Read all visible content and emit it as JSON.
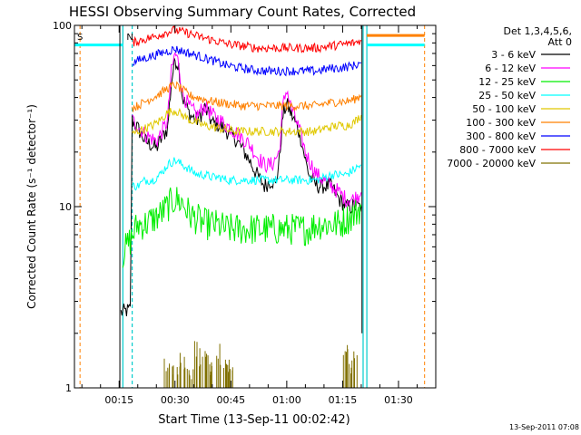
{
  "chart_data": {
    "type": "line",
    "title": "HESSI Observing Summary Count Rates, Corrected",
    "xlabel": "Start Time (13-Sep-11 00:02:42)",
    "ylabel": "Corrected Count Rate (s⁻¹ detector⁻¹)",
    "y_scale": "log",
    "ylim": [
      1,
      100
    ],
    "xlim_minutes": [
      3,
      100
    ],
    "x_ticks": [
      {
        "t": 15,
        "label": "00:15"
      },
      {
        "t": 30,
        "label": "00:30"
      },
      {
        "t": 45,
        "label": "00:45"
      },
      {
        "t": 60,
        "label": "01:00"
      },
      {
        "t": 75,
        "label": "01:15"
      },
      {
        "t": 90,
        "label": "01:30"
      }
    ],
    "y_ticks": [
      {
        "v": 1,
        "label": "1"
      },
      {
        "v": 10,
        "label": "10"
      },
      {
        "v": 100,
        "label": "100"
      }
    ],
    "legend_header": [
      "Det 1,3,4,5,6,",
      "Att 0"
    ],
    "legend_position": "right",
    "series": [
      {
        "name": "3 - 6 keV",
        "color": "#000000",
        "points": [
          [
            15.5,
            2.6
          ],
          [
            18,
            2.7
          ],
          [
            18.5,
            30
          ],
          [
            20,
            27
          ],
          [
            22,
            23
          ],
          [
            25,
            21
          ],
          [
            27,
            25
          ],
          [
            28,
            27
          ],
          [
            29,
            48
          ],
          [
            30,
            65
          ],
          [
            31,
            60
          ],
          [
            32,
            40
          ],
          [
            34,
            32
          ],
          [
            36,
            30
          ],
          [
            38,
            35
          ],
          [
            40,
            29
          ],
          [
            42,
            28
          ],
          [
            44,
            26
          ],
          [
            46,
            24
          ],
          [
            48,
            21
          ],
          [
            50,
            18
          ],
          [
            52,
            15
          ],
          [
            54,
            13
          ],
          [
            56,
            14
          ],
          [
            57,
            13
          ],
          [
            58,
            18
          ],
          [
            59,
            32
          ],
          [
            60,
            37
          ],
          [
            61,
            33
          ],
          [
            62,
            30
          ],
          [
            63,
            27
          ],
          [
            64,
            23
          ],
          [
            65,
            18
          ],
          [
            66,
            15
          ],
          [
            68,
            13
          ],
          [
            70,
            13
          ],
          [
            72,
            13
          ],
          [
            74,
            11
          ],
          [
            76,
            10
          ],
          [
            78,
            10
          ],
          [
            80,
            10
          ]
        ]
      },
      {
        "name": "6 - 12 keV",
        "color": "#ff00ff",
        "points": [
          [
            18.5,
            30
          ],
          [
            20,
            28
          ],
          [
            22,
            25
          ],
          [
            25,
            23
          ],
          [
            27,
            27
          ],
          [
            28,
            30
          ],
          [
            29,
            55
          ],
          [
            30,
            70
          ],
          [
            31,
            62
          ],
          [
            32,
            42
          ],
          [
            34,
            35
          ],
          [
            36,
            32
          ],
          [
            38,
            36
          ],
          [
            40,
            32
          ],
          [
            42,
            30
          ],
          [
            44,
            28
          ],
          [
            46,
            26
          ],
          [
            48,
            24
          ],
          [
            50,
            22
          ],
          [
            52,
            19
          ],
          [
            54,
            17
          ],
          [
            56,
            17
          ],
          [
            58,
            20
          ],
          [
            59,
            36
          ],
          [
            60,
            45
          ],
          [
            61,
            36
          ],
          [
            62,
            32
          ],
          [
            63,
            28
          ],
          [
            64,
            24
          ],
          [
            65,
            20
          ],
          [
            66,
            18
          ],
          [
            68,
            15
          ],
          [
            70,
            14
          ],
          [
            72,
            13
          ],
          [
            74,
            12
          ],
          [
            76,
            11
          ],
          [
            78,
            11
          ],
          [
            80,
            12
          ]
        ]
      },
      {
        "name": "12 - 25 keV",
        "color": "#00ee00",
        "points": [
          [
            16,
            5.5
          ],
          [
            18,
            6.5
          ],
          [
            20,
            8
          ],
          [
            22,
            8
          ],
          [
            24,
            8.5
          ],
          [
            26,
            9
          ],
          [
            28,
            10
          ],
          [
            30,
            11
          ],
          [
            32,
            10.5
          ],
          [
            34,
            9
          ],
          [
            36,
            8.5
          ],
          [
            38,
            8
          ],
          [
            40,
            8
          ],
          [
            42,
            7.8
          ],
          [
            44,
            7.5
          ],
          [
            46,
            7.5
          ],
          [
            48,
            7.5
          ],
          [
            50,
            7.5
          ],
          [
            52,
            7.5
          ],
          [
            54,
            7.5
          ],
          [
            56,
            7.5
          ],
          [
            58,
            7.5
          ],
          [
            60,
            7.5
          ],
          [
            62,
            7.5
          ],
          [
            64,
            7.5
          ],
          [
            66,
            7.5
          ],
          [
            68,
            8
          ],
          [
            70,
            8
          ],
          [
            72,
            8
          ],
          [
            74,
            8
          ],
          [
            76,
            8.5
          ],
          [
            78,
            9
          ],
          [
            80,
            10
          ]
        ]
      },
      {
        "name": "25 - 50 keV",
        "color": "#00ffff",
        "points": [
          [
            18.5,
            13
          ],
          [
            20,
            13
          ],
          [
            22,
            14
          ],
          [
            24,
            14
          ],
          [
            26,
            15
          ],
          [
            28,
            17
          ],
          [
            30,
            18
          ],
          [
            32,
            17
          ],
          [
            34,
            16
          ],
          [
            36,
            15
          ],
          [
            38,
            15
          ],
          [
            40,
            14.5
          ],
          [
            42,
            14.5
          ],
          [
            44,
            14
          ],
          [
            46,
            14
          ],
          [
            48,
            14
          ],
          [
            50,
            14
          ],
          [
            52,
            14
          ],
          [
            54,
            14
          ],
          [
            56,
            14
          ],
          [
            58,
            14
          ],
          [
            60,
            14
          ],
          [
            62,
            14
          ],
          [
            64,
            14
          ],
          [
            66,
            14
          ],
          [
            68,
            14
          ],
          [
            70,
            14.5
          ],
          [
            72,
            15
          ],
          [
            74,
            15
          ],
          [
            76,
            15
          ],
          [
            78,
            16
          ],
          [
            80,
            17
          ]
        ]
      },
      {
        "name": "50 - 100 keV",
        "color": "#e0c800",
        "points": [
          [
            18.5,
            25
          ],
          [
            20,
            26
          ],
          [
            22,
            27
          ],
          [
            24,
            28
          ],
          [
            26,
            30
          ],
          [
            28,
            33
          ],
          [
            30,
            34
          ],
          [
            32,
            32
          ],
          [
            34,
            30
          ],
          [
            36,
            29
          ],
          [
            38,
            28
          ],
          [
            40,
            27.5
          ],
          [
            42,
            27
          ],
          [
            44,
            26.5
          ],
          [
            46,
            26
          ],
          [
            48,
            26
          ],
          [
            50,
            26
          ],
          [
            52,
            26
          ],
          [
            54,
            26
          ],
          [
            56,
            26
          ],
          [
            58,
            26
          ],
          [
            60,
            26
          ],
          [
            62,
            26
          ],
          [
            64,
            26
          ],
          [
            66,
            26
          ],
          [
            68,
            26
          ],
          [
            70,
            27
          ],
          [
            72,
            27.5
          ],
          [
            74,
            28
          ],
          [
            76,
            28
          ],
          [
            78,
            29
          ],
          [
            80,
            32
          ]
        ]
      },
      {
        "name": "100 - 300 keV",
        "color": "#ff8000",
        "points": [
          [
            18.5,
            35
          ],
          [
            20,
            36
          ],
          [
            22,
            38
          ],
          [
            24,
            40
          ],
          [
            26,
            42
          ],
          [
            28,
            45
          ],
          [
            30,
            47
          ],
          [
            32,
            44
          ],
          [
            34,
            41
          ],
          [
            36,
            40
          ],
          [
            38,
            39
          ],
          [
            40,
            38
          ],
          [
            42,
            37.5
          ],
          [
            44,
            37
          ],
          [
            46,
            36.5
          ],
          [
            48,
            36
          ],
          [
            50,
            36
          ],
          [
            52,
            36
          ],
          [
            54,
            36
          ],
          [
            56,
            36
          ],
          [
            58,
            36
          ],
          [
            60,
            36
          ],
          [
            62,
            36
          ],
          [
            64,
            36
          ],
          [
            66,
            36
          ],
          [
            68,
            36
          ],
          [
            70,
            37
          ],
          [
            72,
            37.5
          ],
          [
            74,
            38
          ],
          [
            76,
            38
          ],
          [
            78,
            39
          ],
          [
            80,
            41
          ]
        ]
      },
      {
        "name": "300 - 800 keV",
        "color": "#0000ff",
        "points": [
          [
            18.5,
            62
          ],
          [
            20,
            64
          ],
          [
            22,
            66
          ],
          [
            24,
            68
          ],
          [
            26,
            70
          ],
          [
            28,
            72
          ],
          [
            30,
            74
          ],
          [
            32,
            72
          ],
          [
            34,
            70
          ],
          [
            36,
            68
          ],
          [
            38,
            66
          ],
          [
            40,
            64
          ],
          [
            42,
            62
          ],
          [
            44,
            60
          ],
          [
            46,
            59
          ],
          [
            48,
            58
          ],
          [
            50,
            57
          ],
          [
            52,
            56.5
          ],
          [
            54,
            56
          ],
          [
            56,
            56
          ],
          [
            58,
            56
          ],
          [
            60,
            56
          ],
          [
            62,
            56
          ],
          [
            64,
            56
          ],
          [
            66,
            56
          ],
          [
            68,
            56
          ],
          [
            70,
            57
          ],
          [
            72,
            58
          ],
          [
            74,
            58
          ],
          [
            76,
            59
          ],
          [
            78,
            60
          ],
          [
            80,
            62
          ]
        ]
      },
      {
        "name": "800 - 7000 keV",
        "color": "#ff0000",
        "points": [
          [
            18.5,
            80
          ],
          [
            20,
            82
          ],
          [
            22,
            84
          ],
          [
            24,
            86
          ],
          [
            26,
            89
          ],
          [
            28,
            92
          ],
          [
            30,
            94
          ],
          [
            32,
            92
          ],
          [
            34,
            90
          ],
          [
            36,
            87
          ],
          [
            38,
            85
          ],
          [
            40,
            83
          ],
          [
            42,
            81
          ],
          [
            44,
            79
          ],
          [
            46,
            78
          ],
          [
            48,
            77
          ],
          [
            50,
            76
          ],
          [
            52,
            75
          ],
          [
            54,
            75
          ],
          [
            56,
            75
          ],
          [
            58,
            75
          ],
          [
            60,
            75
          ],
          [
            62,
            75
          ],
          [
            64,
            75
          ],
          [
            66,
            75
          ],
          [
            68,
            75
          ],
          [
            70,
            76
          ],
          [
            72,
            77
          ],
          [
            74,
            78
          ],
          [
            76,
            79
          ],
          [
            78,
            80
          ],
          [
            80,
            82
          ]
        ]
      },
      {
        "name": "7000 - 20000 keV",
        "color": "#807000",
        "points": [
          [
            28,
            1.4
          ],
          [
            30,
            1.3
          ],
          [
            32,
            1.5
          ],
          [
            34,
            1.2
          ],
          [
            36,
            1.6
          ],
          [
            38,
            1.4
          ],
          [
            40,
            1.3
          ],
          [
            42,
            1.5
          ],
          [
            44,
            1.3
          ],
          [
            45,
            1.2
          ],
          [
            76,
            1.5
          ],
          [
            78,
            1.4
          ]
        ]
      }
    ],
    "attenuator_labels": [
      {
        "text": "S",
        "color": "#ff8000"
      },
      {
        "text": "N",
        "color": "#00cccc"
      }
    ],
    "grid": false
  },
  "timestamp": "13-Sep-2011 07:08"
}
